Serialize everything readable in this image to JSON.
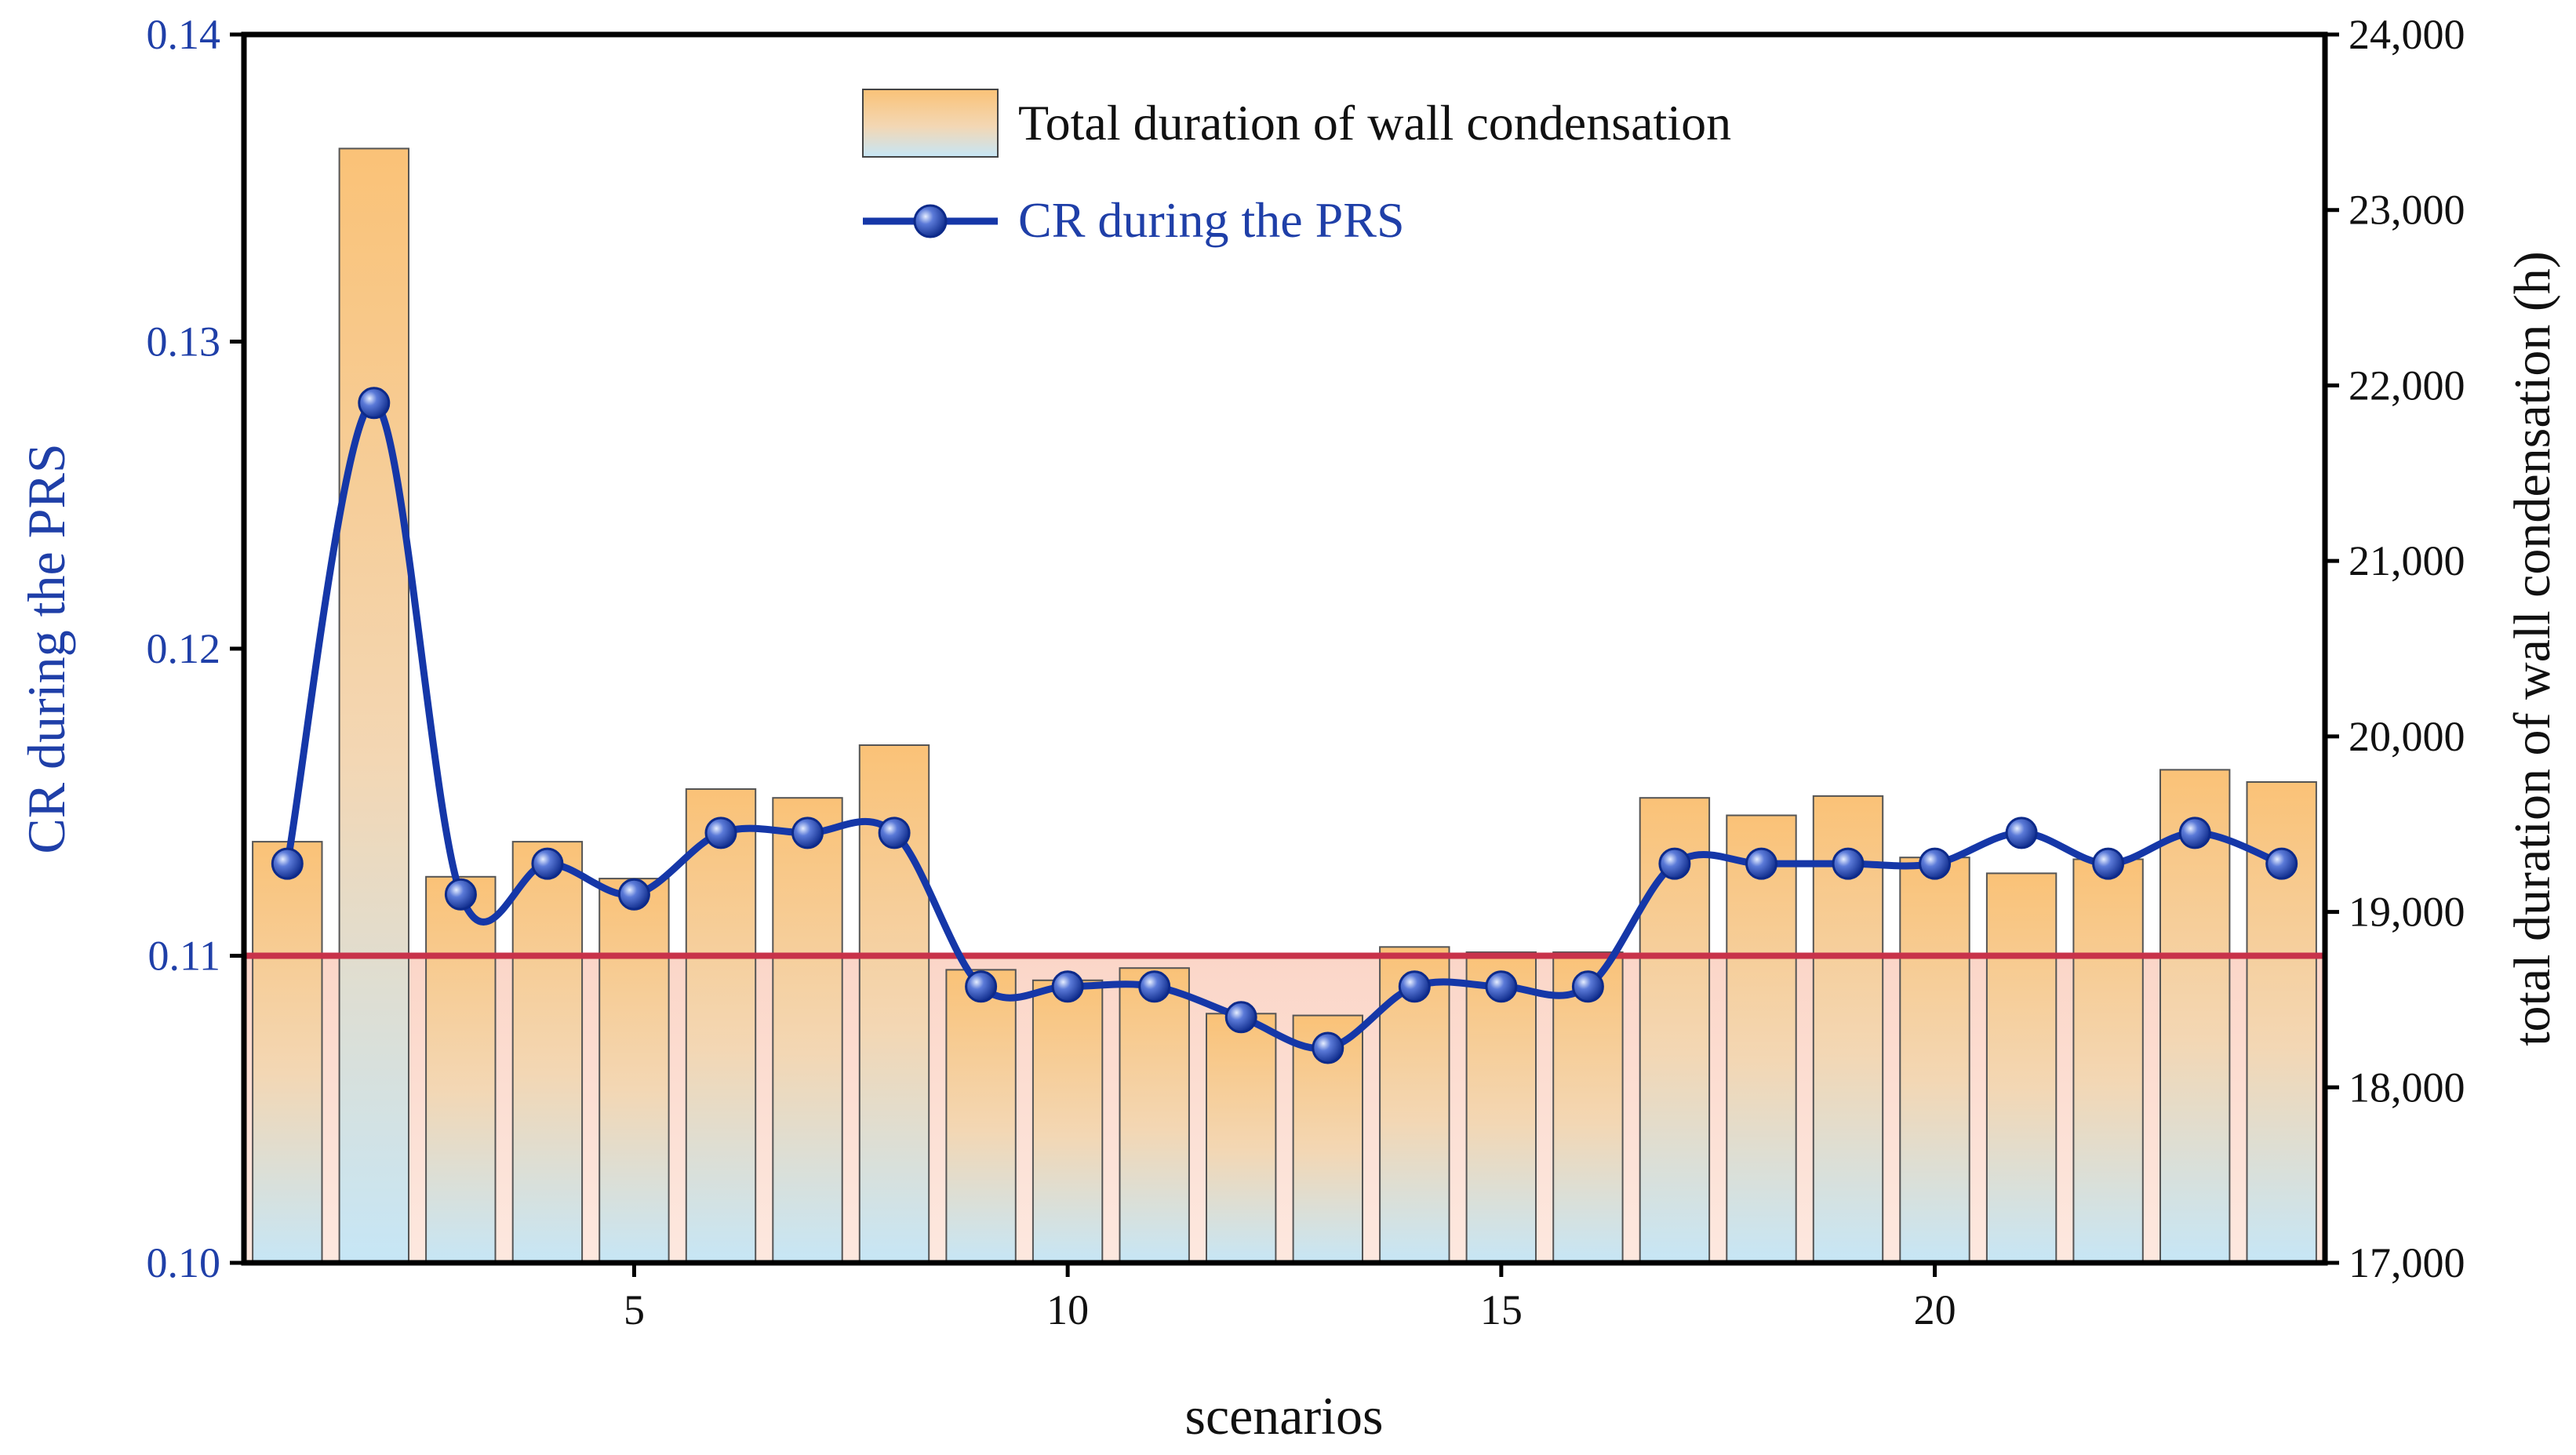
{
  "chart_data": {
    "type": "bar+line",
    "title": "",
    "xlabel": "scenarios",
    "ylabel_left": "CR during the PRS",
    "ylabel_right": "total duration of wall condensation (h)",
    "x": [
      1,
      2,
      3,
      4,
      5,
      6,
      7,
      8,
      9,
      10,
      11,
      12,
      13,
      14,
      15,
      16,
      17,
      18,
      19,
      20,
      21,
      22,
      23,
      24
    ],
    "xlim": [
      0.5,
      24.5
    ],
    "xticks": [
      5,
      10,
      15,
      20
    ],
    "xtick_labels": [
      "5",
      "10",
      "15",
      "20"
    ],
    "ylim_left": [
      0.1,
      0.14
    ],
    "yticks_left": [
      0.1,
      0.11,
      0.12,
      0.13,
      0.14
    ],
    "ytick_labels_left": [
      "0.10",
      "0.11",
      "0.12",
      "0.13",
      "0.14"
    ],
    "ylim_right": [
      17000,
      24000
    ],
    "yticks_right": [
      17000,
      18000,
      19000,
      20000,
      21000,
      22000,
      23000,
      24000
    ],
    "ytick_labels_right": [
      "17,000",
      "18,000",
      "19,000",
      "20,000",
      "21,000",
      "22,000",
      "23,000",
      "24,000"
    ],
    "threshold": {
      "axis": "left",
      "value": 0.11,
      "color": "#c8324a",
      "fill": "#fbd9cf"
    },
    "series": [
      {
        "name": "Total duration of wall condensation",
        "type": "bar",
        "axis": "right",
        "values": [
          19400,
          23350,
          19200,
          19400,
          19190,
          19700,
          19650,
          19950,
          18670,
          18610,
          18680,
          18420,
          18410,
          18800,
          18770,
          18770,
          19650,
          19550,
          19660,
          19310,
          19220,
          19300,
          19810,
          19740
        ]
      },
      {
        "name": "CR during the PRS",
        "type": "line",
        "axis": "left",
        "color": "#1537a8",
        "values": [
          0.113,
          0.128,
          0.112,
          0.113,
          0.112,
          0.114,
          0.114,
          0.114,
          0.109,
          0.109,
          0.109,
          0.108,
          0.107,
          0.109,
          0.109,
          0.109,
          0.113,
          0.113,
          0.113,
          0.113,
          0.114,
          0.113,
          0.114,
          0.113
        ]
      }
    ],
    "legend": {
      "position": "top-center"
    }
  }
}
